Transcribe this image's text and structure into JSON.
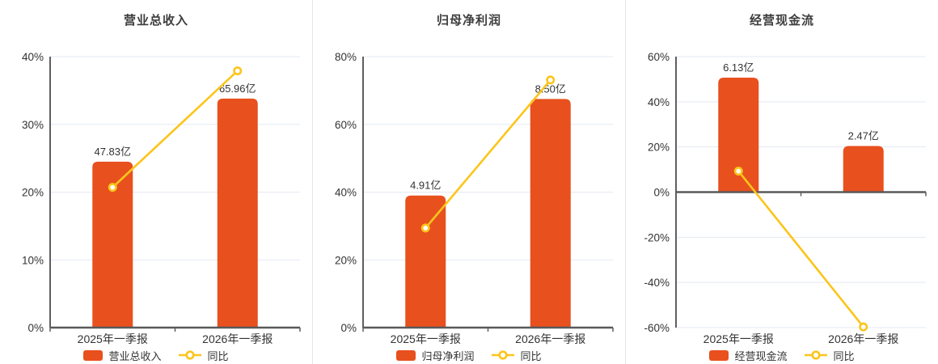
{
  "colors": {
    "bar": "#e8501e",
    "line": "#fbc51b",
    "grid": "#e3e9f1",
    "axis": "#5f5f5f",
    "zero_line": "#58595b",
    "label_text": "#333333",
    "title_text": "#3d3d3d",
    "marker_fill": "#ffffff"
  },
  "chart_data": [
    {
      "type": "bar",
      "title": "营业总收入",
      "categories": [
        "2025年一季报",
        "2026年一季报"
      ],
      "bar_series": {
        "name": "营业总收入",
        "unit": "亿",
        "values": [
          47.83,
          65.96
        ],
        "data_labels": [
          "47.83亿",
          "65.96亿"
        ],
        "axis_pct": [
          24.5,
          33.8
        ]
      },
      "line_series": {
        "name": "同比",
        "values_pct": [
          20.7,
          37.9
        ]
      },
      "y_axis": {
        "min": 0,
        "max": 40,
        "step": 10,
        "unit": "%"
      },
      "grid": true,
      "legend_position": "bottom"
    },
    {
      "type": "bar",
      "title": "归母净利润",
      "categories": [
        "2025年一季报",
        "2026年一季报"
      ],
      "bar_series": {
        "name": "归母净利润",
        "unit": "亿",
        "values": [
          4.91,
          8.5
        ],
        "data_labels": [
          "4.91亿",
          "8.50亿"
        ],
        "axis_pct": [
          39.0,
          67.5
        ]
      },
      "line_series": {
        "name": "同比",
        "values_pct": [
          29.4,
          73.1
        ]
      },
      "y_axis": {
        "min": 0,
        "max": 80,
        "step": 20,
        "unit": "%"
      },
      "grid": true,
      "legend_position": "bottom"
    },
    {
      "type": "bar",
      "title": "经营现金流",
      "categories": [
        "2025年一季报",
        "2026年一季报"
      ],
      "bar_series": {
        "name": "经营现金流",
        "unit": "亿",
        "values": [
          6.13,
          2.47
        ],
        "data_labels": [
          "6.13亿",
          "2.47亿"
        ],
        "axis_pct": [
          50.7,
          20.4
        ]
      },
      "line_series": {
        "name": "同比",
        "values_pct": [
          9.3,
          -59.7
        ]
      },
      "y_axis": {
        "min": -60,
        "max": 60,
        "step": 20,
        "unit": "%"
      },
      "grid": true,
      "legend_position": "bottom"
    }
  ]
}
